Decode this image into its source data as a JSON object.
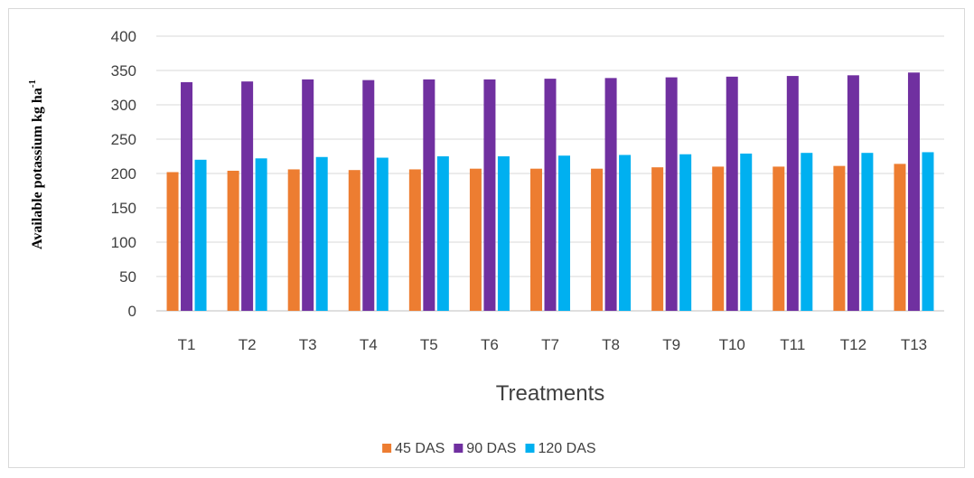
{
  "chart_data": {
    "type": "bar",
    "title": "",
    "xlabel": "Treatments",
    "ylabel": "Available potassium kg ha",
    "ylabel_superscript": "-1",
    "ylim": [
      0,
      400
    ],
    "ytick_step": 50,
    "grid": true,
    "legend_position": "bottom",
    "categories": [
      "T1",
      "T2",
      "T3",
      "T4",
      "T5",
      "T6",
      "T7",
      "T8",
      "T9",
      "T10",
      "T11",
      "T12",
      "T13"
    ],
    "series": [
      {
        "name": "45 DAS",
        "color": "#ed7d31",
        "values": [
          202,
          204,
          206,
          205,
          206,
          207,
          207,
          207,
          209,
          210,
          210,
          211,
          214
        ]
      },
      {
        "name": "90 DAS",
        "color": "#7030a0",
        "values": [
          333,
          334,
          337,
          336,
          337,
          337,
          338,
          339,
          340,
          341,
          342,
          343,
          347
        ]
      },
      {
        "name": "120 DAS",
        "color": "#00b0f0",
        "values": [
          220,
          222,
          224,
          223,
          225,
          225,
          226,
          227,
          228,
          229,
          230,
          230,
          231
        ]
      }
    ]
  }
}
